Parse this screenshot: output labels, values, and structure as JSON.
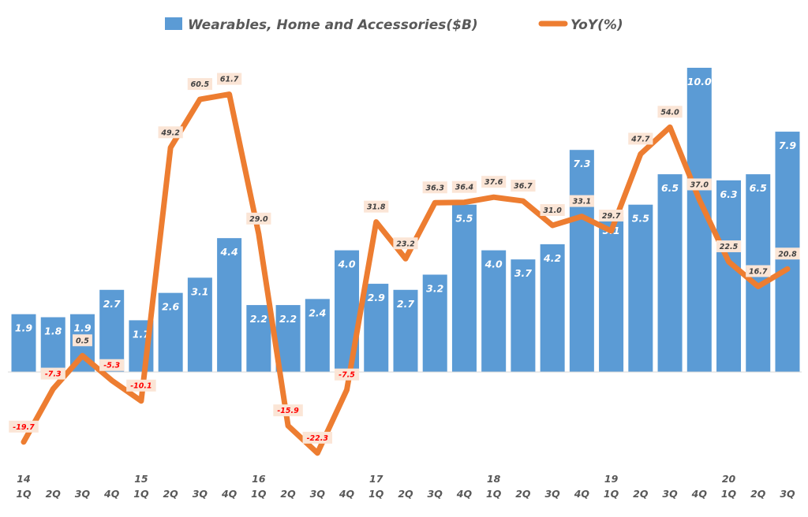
{
  "chart_data": {
    "type": "bar+line",
    "legend_placement": "top",
    "grid": false,
    "categories": [
      "1Q",
      "2Q",
      "3Q",
      "4Q",
      "1Q",
      "2Q",
      "3Q",
      "4Q",
      "1Q",
      "2Q",
      "3Q",
      "4Q",
      "1Q",
      "2Q",
      "3Q",
      "4Q",
      "1Q",
      "2Q",
      "3Q",
      "4Q",
      "1Q",
      "2Q",
      "3Q",
      "4Q",
      "1Q",
      "2Q",
      "3Q"
    ],
    "year_labels": [
      "14",
      "",
      "",
      "",
      "15",
      "",
      "",
      "",
      "16",
      "",
      "",
      "",
      "17",
      "",
      "",
      "",
      "18",
      "",
      "",
      "",
      "19",
      "",
      "",
      "",
      "20",
      "",
      ""
    ],
    "series": [
      {
        "name": "Wearables, Home and Accessories($B)",
        "type": "bar",
        "color": "#5B9BD5",
        "values": [
          1.9,
          1.8,
          1.9,
          2.7,
          1.7,
          2.6,
          3.1,
          4.4,
          2.2,
          2.2,
          2.4,
          4.0,
          2.9,
          2.7,
          3.2,
          5.5,
          4.0,
          3.7,
          4.2,
          7.3,
          5.1,
          5.5,
          6.5,
          10.0,
          6.3,
          6.5,
          7.9
        ]
      },
      {
        "name": "YoY(%)",
        "type": "line",
        "color": "#ED7D31",
        "values": [
          -19.7,
          -7.3,
          0.5,
          -5.3,
          -10.1,
          49.2,
          60.5,
          61.7,
          29.0,
          -15.9,
          -22.3,
          -7.5,
          31.8,
          23.2,
          36.3,
          36.4,
          37.6,
          36.7,
          31.0,
          33.1,
          29.7,
          47.7,
          54.0,
          37.0,
          22.5,
          16.7,
          20.8
        ]
      }
    ],
    "negative_label_color": "#FF0000",
    "positive_label_color": "#404040",
    "label_box_color": "#FBE5D6"
  }
}
